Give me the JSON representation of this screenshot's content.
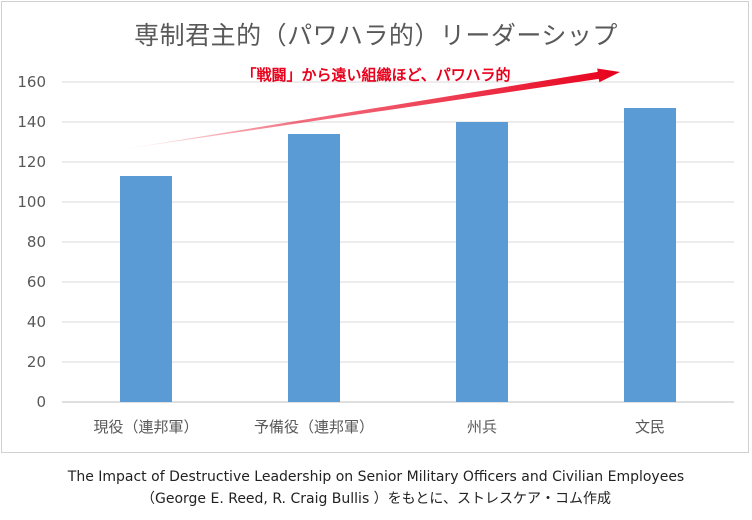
{
  "chart_data": {
    "type": "bar",
    "title": "専制君主的（パワハラ的）リーダーシップ",
    "categories": [
      "現役（連邦軍）",
      "予備役（連邦軍）",
      "州兵",
      "文民"
    ],
    "values": [
      113,
      134,
      140,
      147
    ],
    "ylim": [
      0,
      160
    ],
    "yticks": [
      0,
      20,
      40,
      60,
      80,
      100,
      120,
      140,
      160
    ],
    "grid": true,
    "bar_color": "#5b9bd5",
    "annotation": {
      "text": "「戦闘」から遠い組織ほど、パワハラ的",
      "color": "#e8001c"
    }
  },
  "source": {
    "line1": "The Impact of Destructive Leadership on Senior Military Officers and Civilian Employees",
    "line2": "（George E. Reed, R. Craig Bullis ）をもとに、ストレスケア・コム作成"
  }
}
